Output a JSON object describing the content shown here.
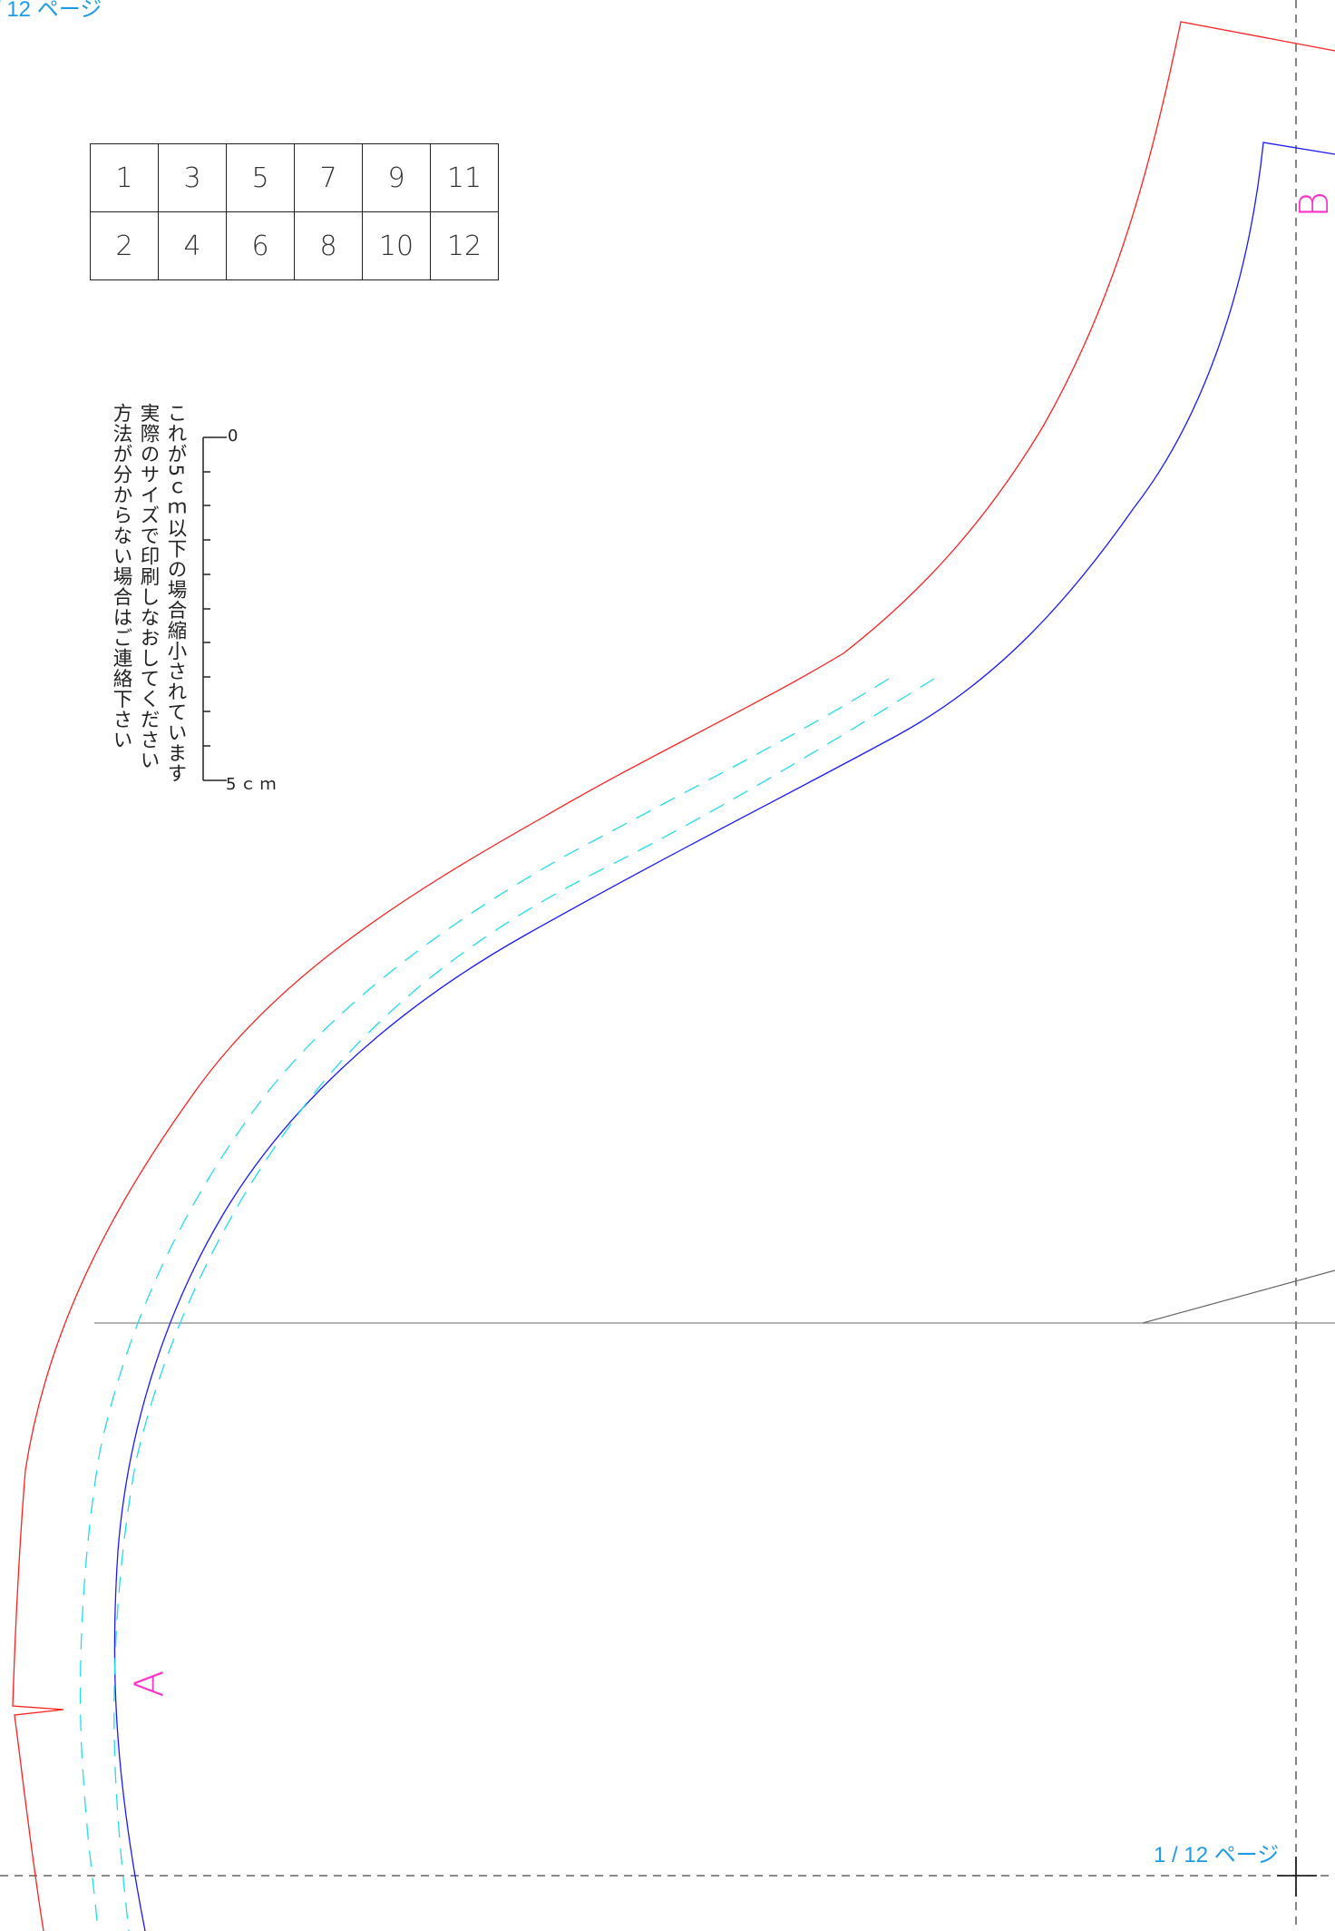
{
  "page_label": "1 / 12 ページ",
  "page_label_top": "/ 12 ページ",
  "page_grid": {
    "rows": [
      [
        "1",
        "3",
        "5",
        "7",
        "9",
        "11"
      ],
      [
        "2",
        "4",
        "6",
        "8",
        "10",
        "12"
      ]
    ]
  },
  "scale": {
    "note_lines": [
      "これが5ｃｍ以下の場合縮小されています",
      "実際のサイズで印刷しなおしてください",
      "方法が分からない場合はご連絡下さい"
    ],
    "start_label": "0",
    "end_label": "5ｃｍ",
    "length_cm": 5,
    "tick_interval_mm": 5
  },
  "pieces": {
    "a_label": "A",
    "b_label": "B"
  },
  "colors": {
    "cut_line": "#ff2020",
    "stitch_line": "#1a1aff",
    "seam_allowance": "#22ddee",
    "page_border": "#444444",
    "page_label": "#1e9be8",
    "piece_letter": "#ff33cc"
  }
}
